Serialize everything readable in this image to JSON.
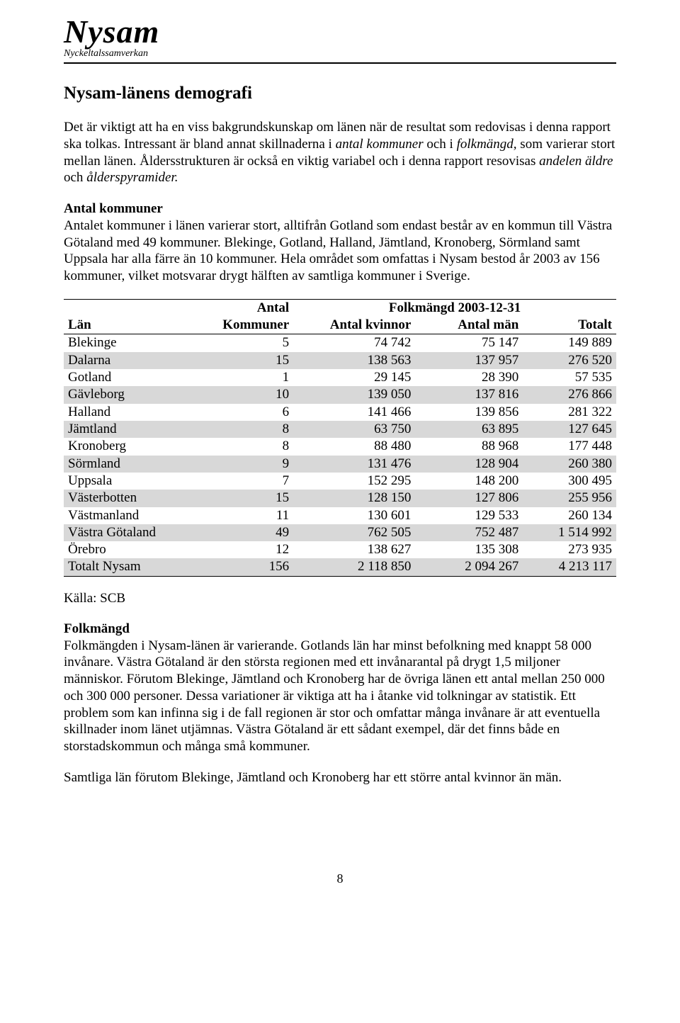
{
  "header": {
    "logo_title": "Nysam",
    "logo_subtitle": "Nyckeltalssamverkan"
  },
  "title": "Nysam-länens demografi",
  "intro_parts": {
    "p1a": "Det är viktigt att ha en viss bakgrundskunskap om länen när de resultat som redovisas i denna rapport ska tolkas. Intressant är bland annat skillnaderna i ",
    "p1_ital1": "antal kommuner",
    "p1b": " och i ",
    "p1_ital2": "folkmängd,",
    "p1c": " som varierar stort mellan länen. Åldersstrukturen är också en viktig variabel och i denna rapport resovisas ",
    "p1_ital3": "andelen äldre",
    "p1d": " och ",
    "p1_ital4": "ålderspyramider."
  },
  "sub1_head": "Antal kommuner",
  "sub1_body": "Antalet kommuner i länen varierar stort, alltifrån Gotland som endast består av en kommun till Västra Götaland med 49 kommuner. Blekinge, Gotland, Halland, Jämtland, Kronoberg, Sörmland samt Uppsala har alla färre än 10 kommuner. Hela området som omfattas i Nysam bestod år 2003 av 156 kommuner, vilket motsvarar drygt hälften av samtliga kommuner i Sverige.",
  "table": {
    "head": {
      "antal": "Antal",
      "folkmangd": "Folkmängd 2003-12-31",
      "lan": "Län",
      "kommuner": "Kommuner",
      "kvinnor": "Antal kvinnor",
      "man": "Antal män",
      "totalt": "Totalt"
    },
    "rows": [
      {
        "lan": "Blekinge",
        "kom": "5",
        "kv": "74 742",
        "man": "75 147",
        "tot": "149 889",
        "shade": false
      },
      {
        "lan": "Dalarna",
        "kom": "15",
        "kv": "138 563",
        "man": "137 957",
        "tot": "276 520",
        "shade": true
      },
      {
        "lan": "Gotland",
        "kom": "1",
        "kv": "29 145",
        "man": "28 390",
        "tot": "57 535",
        "shade": false
      },
      {
        "lan": "Gävleborg",
        "kom": "10",
        "kv": "139 050",
        "man": "137 816",
        "tot": "276 866",
        "shade": true
      },
      {
        "lan": "Halland",
        "kom": "6",
        "kv": "141 466",
        "man": "139 856",
        "tot": "281 322",
        "shade": false
      },
      {
        "lan": "Jämtland",
        "kom": "8",
        "kv": "63 750",
        "man": "63 895",
        "tot": "127 645",
        "shade": true
      },
      {
        "lan": "Kronoberg",
        "kom": "8",
        "kv": "88 480",
        "man": "88 968",
        "tot": "177 448",
        "shade": false
      },
      {
        "lan": "Sörmland",
        "kom": "9",
        "kv": "131 476",
        "man": "128 904",
        "tot": "260 380",
        "shade": true
      },
      {
        "lan": "Uppsala",
        "kom": "7",
        "kv": "152 295",
        "man": "148 200",
        "tot": "300 495",
        "shade": false
      },
      {
        "lan": "Västerbotten",
        "kom": "15",
        "kv": "128 150",
        "man": "127 806",
        "tot": "255 956",
        "shade": true
      },
      {
        "lan": "Västmanland",
        "kom": "11",
        "kv": "130 601",
        "man": "129 533",
        "tot": "260 134",
        "shade": false
      },
      {
        "lan": "Västra Götaland",
        "kom": "49",
        "kv": "762 505",
        "man": "752 487",
        "tot": "1 514 992",
        "shade": true
      },
      {
        "lan": "Örebro",
        "kom": "12",
        "kv": "138 627",
        "man": "135 308",
        "tot": "273 935",
        "shade": false
      },
      {
        "lan": "Totalt Nysam",
        "kom": "156",
        "kv": "2 118 850",
        "man": "2 094 267",
        "tot": "4 213 117",
        "shade": true
      }
    ],
    "colors": {
      "shade_bg": "#d8d8d8",
      "border": "#000000"
    }
  },
  "source": "Källa: SCB",
  "sub2_head": "Folkmängd",
  "sub2_body": "Folkmängden i Nysam-länen är varierande. Gotlands län har minst befolkning med knappt 58 000 invånare. Västra Götaland är den största regionen med ett invånarantal på drygt 1,5 miljoner människor. Förutom Blekinge, Jämtland och Kronoberg har de övriga länen ett antal mellan 250 000 och 300 000 personer. Dessa variationer är viktiga att ha i åtanke vid tolkningar av statistik. Ett problem som kan infinna sig i de fall regionen är stor och omfattar många invånare är att eventuella skillnader inom länet utjämnas. Västra Götaland är ett sådant exempel, där det finns både en storstadskommun och många små kommuner.",
  "closing": "Samtliga län förutom Blekinge, Jämtland och Kronoberg har ett större antal kvinnor än män.",
  "page_number": "8"
}
